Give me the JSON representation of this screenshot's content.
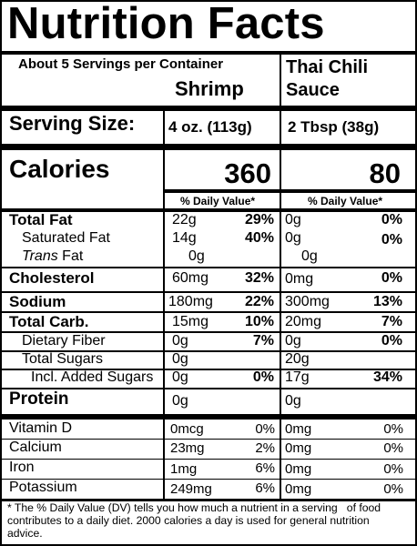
{
  "title": "Nutrition Facts",
  "servings_text": "About 5 Servings per Container",
  "products": [
    {
      "name": "Shrimp",
      "serving_size": "4 oz. (113g)",
      "calories": "360"
    },
    {
      "name_line1": "Thai Chili",
      "name_line2": "Sauce",
      "serving_size": "2 Tbsp (38g)",
      "calories": "80"
    }
  ],
  "serving_size_label": "Serving Size:",
  "calories_label": "Calories",
  "dv_header": "% Daily Value*",
  "nutrients": [
    {
      "label": "Total Fat",
      "p1": {
        "amount": "22g",
        "dv": "29%"
      },
      "p2": {
        "amount": "0g",
        "dv": "0%"
      }
    },
    {
      "label": "Saturated Fat",
      "p1": {
        "amount": "14g",
        "dv": "40%"
      },
      "p2": {
        "amount": "0g",
        "dv": "0%"
      }
    },
    {
      "label_italic": "Trans",
      "label_rest": " Fat",
      "p1": {
        "amount": "0g"
      },
      "p2": {
        "amount": "0g"
      }
    },
    {
      "label": "Cholesterol",
      "p1": {
        "amount": "60mg",
        "dv": "32%"
      },
      "p2": {
        "amount": "0mg",
        "dv": "0%"
      }
    },
    {
      "label": "Sodium",
      "p1": {
        "amount": "180mg",
        "dv": "22%"
      },
      "p2": {
        "amount": "300mg",
        "dv": "13%"
      }
    },
    {
      "label": "Total Carb.",
      "p1": {
        "amount": "15mg",
        "dv": "10%"
      },
      "p2": {
        "amount": "20mg",
        "dv": "7%"
      }
    },
    {
      "label": "Dietary Fiber",
      "p1": {
        "amount": "0g",
        "dv": "7%"
      },
      "p2": {
        "amount": "0g",
        "dv": "0%"
      }
    },
    {
      "label": "Total Sugars",
      "p1": {
        "amount": "0g"
      },
      "p2": {
        "amount": "20g"
      }
    },
    {
      "label": "Incl. Added Sugars",
      "p1": {
        "amount": "0g",
        "dv": "0%"
      },
      "p2": {
        "amount": "17g",
        "dv": "34%"
      }
    },
    {
      "label": "Protein",
      "p1": {
        "amount": "0g"
      },
      "p2": {
        "amount": "0g"
      }
    }
  ],
  "vitamins": [
    {
      "label": "Vitamin D",
      "p1": {
        "amount": "0mcg",
        "dv": "0%"
      },
      "p2": {
        "amount": "0mg",
        "dv": "0%"
      }
    },
    {
      "label": "Calcium",
      "p1": {
        "amount": "23mg",
        "dv": "2%"
      },
      "p2": {
        "amount": "0mg",
        "dv": "0%"
      }
    },
    {
      "label": "Iron",
      "p1": {
        "amount": "1mg",
        "dv": "6%"
      },
      "p2": {
        "amount": "0mg",
        "dv": "0%"
      }
    },
    {
      "label": "Potassium",
      "p1": {
        "amount": "249mg",
        "dv": "6%"
      },
      "p2": {
        "amount": "0mg",
        "dv": "0%"
      }
    }
  ],
  "footnote": "* The % Daily Value (DV) tells you how much a nutrient in a serving   of food contributes to a daily diet. 2000 calories a day is used for general nutrition advice."
}
